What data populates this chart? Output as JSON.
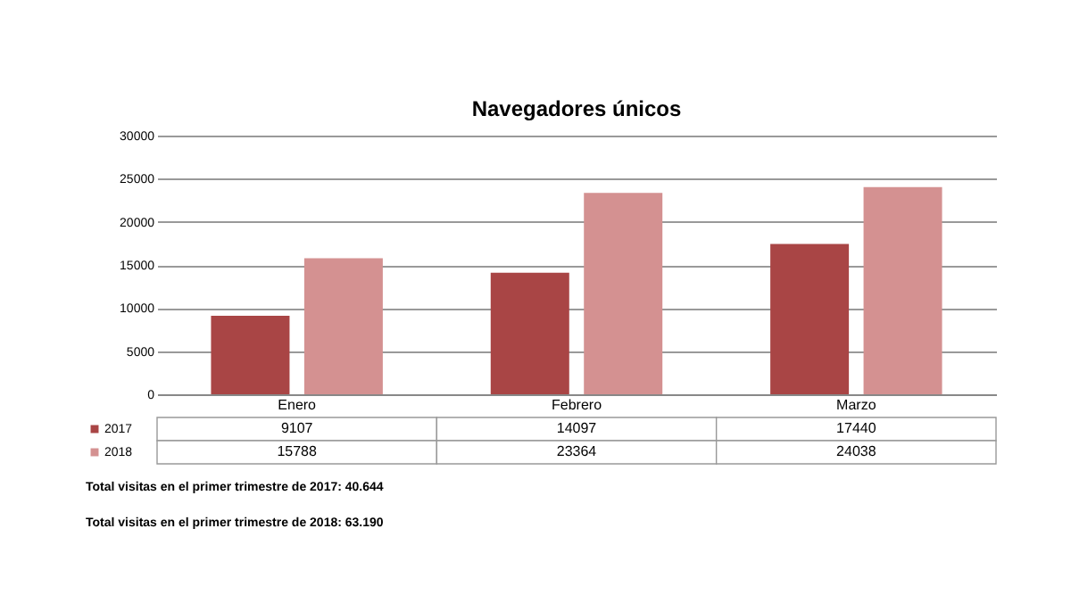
{
  "chart_data": {
    "type": "bar",
    "title": "Navegadores únicos",
    "categories": [
      "Enero",
      "Febrero",
      "Marzo"
    ],
    "series": [
      {
        "name": "2017",
        "color": "#a94545",
        "values": [
          9107,
          14097,
          17440
        ]
      },
      {
        "name": "2018",
        "color": "#d49191",
        "values": [
          15788,
          23364,
          24038
        ]
      }
    ],
    "ylim": [
      0,
      30000
    ],
    "yticks": [
      0,
      5000,
      10000,
      15000,
      20000,
      25000,
      30000
    ],
    "grid": "y",
    "legend": "bottom",
    "data_labels": true,
    "annotations": [
      "Total visitas en el primer trimestre de 2017: 40.644",
      "Total visitas en el primer trimestre de 2018: 63.190"
    ]
  }
}
